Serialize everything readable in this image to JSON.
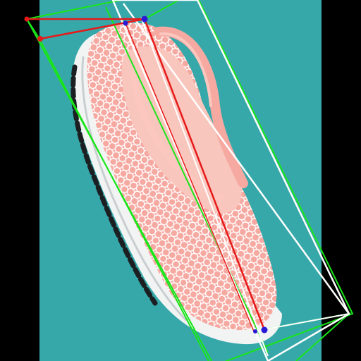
{
  "scene": {
    "subject": "shoe-photo",
    "colors": {
      "letterbox": "#000000",
      "background": "#3aaeb0",
      "background_dark": "#2b9799",
      "sole": "#f2f4f4",
      "sole_shadow": "#c9cfd0",
      "tread": "#1c1f22",
      "upper": "#f6a9a1",
      "upper_light": "#fbc7bf",
      "mesh": "#ffffff",
      "lining": "#f9c6bd",
      "box_green": "#19e619",
      "box_white": "#ffffff",
      "axis_red": "#e61919",
      "keypoint_red": "#e61919",
      "keypoint_blue": "#2a1bd6"
    }
  }
}
